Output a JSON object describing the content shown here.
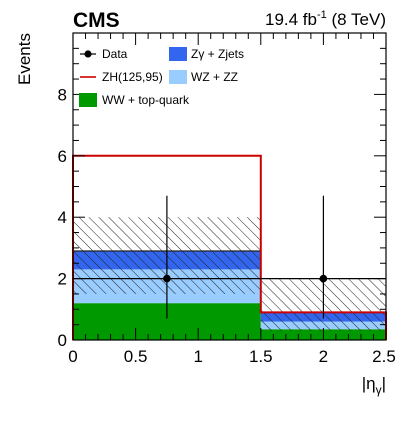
{
  "header": {
    "experiment": "CMS",
    "lumi_value": "19.4 fb",
    "lumi_exp": "-1",
    "lumi_energy": " (8 TeV)"
  },
  "axes": {
    "ylabel": "Events",
    "xlabel_main": "|η",
    "xlabel_sub": "γ",
    "xlabel_close": "|",
    "xticks": [
      "0",
      "0.5",
      "1",
      "1.5",
      "2",
      "2.5"
    ],
    "yticks": [
      "0",
      "2",
      "4",
      "6",
      "8"
    ]
  },
  "legend": {
    "data": "Data",
    "signal": "ZH(125,95)",
    "ww_top": "WW + top-quark",
    "zg": "Zγ + Zjets",
    "wz": "WZ + ZZ"
  },
  "colors": {
    "ww_top": "#009900",
    "wz": "#99ccff",
    "zg": "#3366ee",
    "signal": "#cc0000",
    "data": "#000000"
  },
  "chart_data": {
    "type": "bar",
    "stacked": true,
    "title": "",
    "xlabel": "|ηγ|",
    "ylabel": "Events",
    "xlim": [
      0,
      2.5
    ],
    "ylim": [
      0,
      10
    ],
    "bin_edges": [
      0,
      1.5,
      2.5
    ],
    "stack": [
      {
        "name": "WW + top-quark",
        "values": [
          1.2,
          0.35
        ]
      },
      {
        "name": "WZ + ZZ",
        "values": [
          1.1,
          0.25
        ]
      },
      {
        "name": "Zγ + Zjets",
        "values": [
          0.6,
          0.3
        ]
      }
    ],
    "uncertainty_band": {
      "low": [
        1.5,
        0.3
      ],
      "high": [
        4.0,
        2.0
      ]
    },
    "signal": {
      "name": "ZH(125,95)",
      "values": [
        6.0,
        0.9
      ]
    },
    "data": {
      "name": "Data",
      "x": [
        0.75,
        2.0
      ],
      "y": [
        2,
        2
      ],
      "err_low": [
        1.3,
        1.3
      ],
      "err_high": [
        2.7,
        2.7
      ]
    }
  }
}
